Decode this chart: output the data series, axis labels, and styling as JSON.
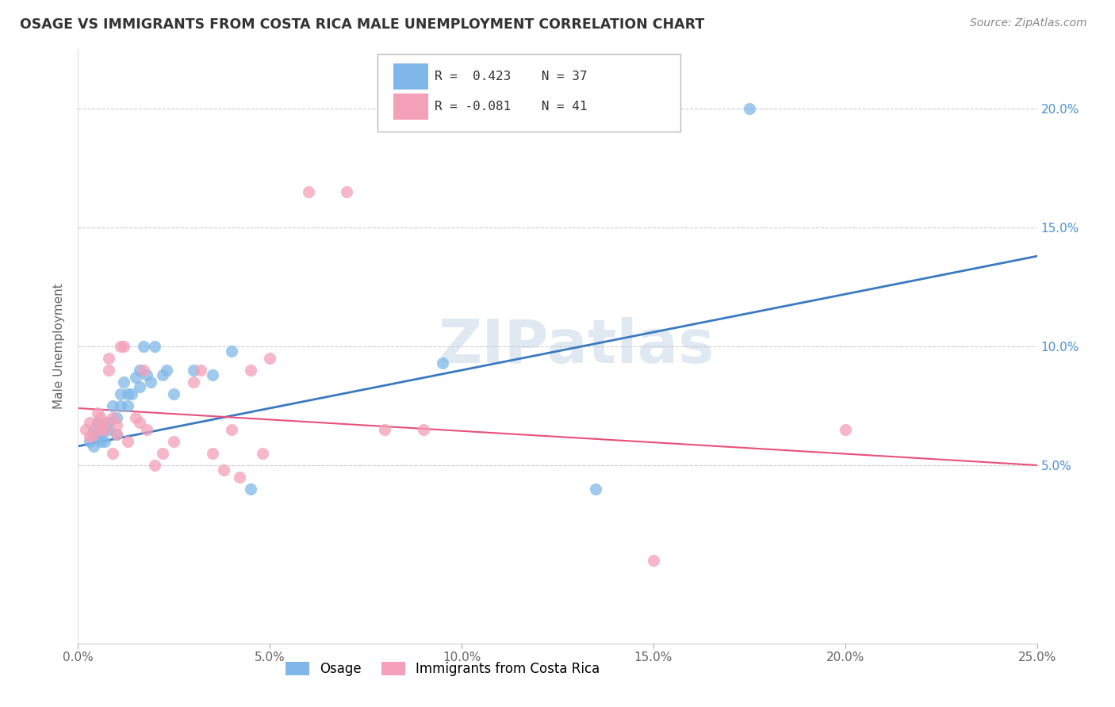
{
  "title": "OSAGE VS IMMIGRANTS FROM COSTA RICA MALE UNEMPLOYMENT CORRELATION CHART",
  "source": "Source: ZipAtlas.com",
  "ylabel": "Male Unemployment",
  "xlim": [
    0,
    0.25
  ],
  "ylim": [
    -0.025,
    0.225
  ],
  "xticks": [
    0.0,
    0.05,
    0.1,
    0.15,
    0.2,
    0.25
  ],
  "yticks": [
    0.05,
    0.1,
    0.15,
    0.2
  ],
  "ytick_labels_right": [
    "5.0%",
    "10.0%",
    "15.0%",
    "20.0%"
  ],
  "xtick_labels": [
    "0.0%",
    "5.0%",
    "10.0%",
    "15.0%",
    "20.0%",
    "25.0%"
  ],
  "blue_color": "#7fb8e8",
  "pink_color": "#f4a0b8",
  "blue_line_color": "#3a7abf",
  "pink_line_color": "#e8507a",
  "watermark": "ZIPatlas",
  "watermark_color": "#c8d8e8",
  "blue_scatter_x": [
    0.003,
    0.004,
    0.004,
    0.005,
    0.005,
    0.006,
    0.006,
    0.007,
    0.007,
    0.008,
    0.008,
    0.009,
    0.01,
    0.01,
    0.011,
    0.011,
    0.012,
    0.013,
    0.013,
    0.014,
    0.015,
    0.016,
    0.016,
    0.017,
    0.018,
    0.019,
    0.02,
    0.022,
    0.023,
    0.025,
    0.03,
    0.035,
    0.04,
    0.045,
    0.095,
    0.135,
    0.175
  ],
  "blue_scatter_y": [
    0.06,
    0.058,
    0.065,
    0.063,
    0.068,
    0.06,
    0.063,
    0.065,
    0.06,
    0.065,
    0.068,
    0.075,
    0.07,
    0.063,
    0.075,
    0.08,
    0.085,
    0.08,
    0.075,
    0.08,
    0.087,
    0.09,
    0.083,
    0.1,
    0.088,
    0.085,
    0.1,
    0.088,
    0.09,
    0.08,
    0.09,
    0.088,
    0.098,
    0.04,
    0.093,
    0.04,
    0.2
  ],
  "pink_scatter_x": [
    0.002,
    0.003,
    0.003,
    0.004,
    0.005,
    0.005,
    0.006,
    0.006,
    0.007,
    0.007,
    0.008,
    0.008,
    0.009,
    0.009,
    0.01,
    0.01,
    0.011,
    0.012,
    0.013,
    0.015,
    0.016,
    0.017,
    0.018,
    0.02,
    0.022,
    0.025,
    0.03,
    0.032,
    0.035,
    0.038,
    0.04,
    0.042,
    0.045,
    0.048,
    0.05,
    0.06,
    0.07,
    0.08,
    0.09,
    0.15,
    0.2
  ],
  "pink_scatter_y": [
    0.065,
    0.062,
    0.068,
    0.063,
    0.067,
    0.072,
    0.065,
    0.07,
    0.065,
    0.068,
    0.09,
    0.095,
    0.055,
    0.07,
    0.063,
    0.067,
    0.1,
    0.1,
    0.06,
    0.07,
    0.068,
    0.09,
    0.065,
    0.05,
    0.055,
    0.06,
    0.085,
    0.09,
    0.055,
    0.048,
    0.065,
    0.045,
    0.09,
    0.055,
    0.095,
    0.165,
    0.165,
    0.065,
    0.065,
    0.01,
    0.065
  ],
  "blue_line_x": [
    0.0,
    0.25
  ],
  "blue_line_y_start": 0.058,
  "blue_line_y_end": 0.138,
  "pink_line_x": [
    0.0,
    0.25
  ],
  "pink_line_y_start": 0.074,
  "pink_line_y_end": 0.05
}
